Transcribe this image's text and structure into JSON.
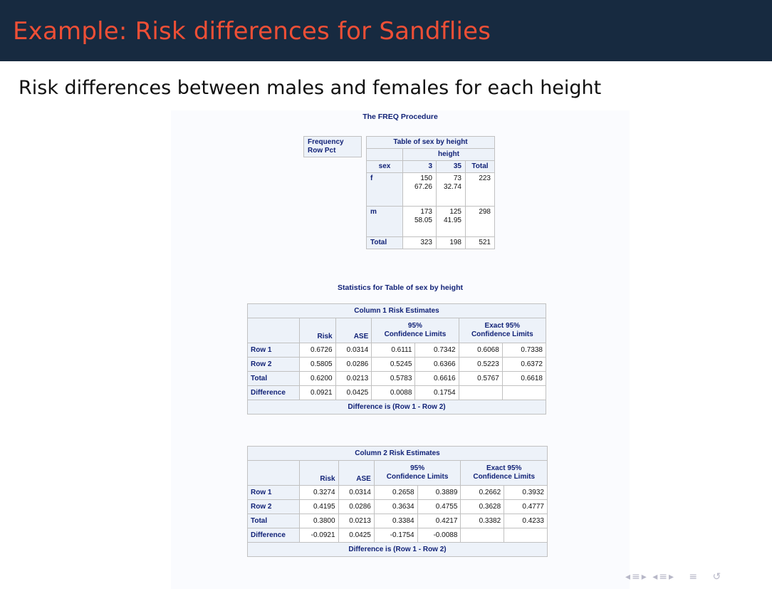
{
  "slide": {
    "title": "Example: Risk differences for Sandflies",
    "subtitle": "Risk differences between males and females for each height"
  },
  "freq": {
    "proc_title": "The FREQ Procedure",
    "legend": [
      "Frequency",
      "Row Pct"
    ],
    "table_title": "Table of sex by height",
    "col_var": "height",
    "row_var": "sex",
    "col_headers": [
      "3",
      "35",
      "Total"
    ],
    "rows": [
      {
        "label": "f",
        "cells": [
          [
            "150",
            "67.26"
          ],
          [
            "73",
            "32.74"
          ],
          [
            "223",
            ""
          ]
        ]
      },
      {
        "label": "m",
        "cells": [
          [
            "173",
            "58.05"
          ],
          [
            "125",
            "41.95"
          ],
          [
            "298",
            ""
          ]
        ]
      }
    ],
    "total_row": {
      "label": "Total",
      "cells": [
        "323",
        "198",
        "521"
      ]
    }
  },
  "stats": {
    "title": "Statistics for Table of sex by height",
    "tables": [
      {
        "title": "Column 1 Risk Estimates",
        "ci_header": [
          "95%",
          "Confidence Limits"
        ],
        "exact_header": [
          "Exact 95%",
          "Confidence Limits"
        ],
        "col_headers": [
          "Risk",
          "ASE"
        ],
        "rows": [
          {
            "label": "Row 1",
            "values": [
              "0.6726",
              "0.0314",
              "0.6111",
              "0.7342",
              "0.6068",
              "0.7338"
            ]
          },
          {
            "label": "Row 2",
            "values": [
              "0.5805",
              "0.0286",
              "0.5245",
              "0.6366",
              "0.5223",
              "0.6372"
            ]
          },
          {
            "label": "Total",
            "values": [
              "0.6200",
              "0.0213",
              "0.5783",
              "0.6616",
              "0.5767",
              "0.6618"
            ]
          },
          {
            "label": "Difference",
            "values": [
              "0.0921",
              "0.0425",
              "0.0088",
              "0.1754",
              "",
              ""
            ]
          }
        ],
        "footer": "Difference is (Row 1 - Row 2)"
      },
      {
        "title": "Column 2 Risk Estimates",
        "ci_header": [
          "95%",
          "Confidence Limits"
        ],
        "exact_header": [
          "Exact 95%",
          "Confidence Limits"
        ],
        "col_headers": [
          "Risk",
          "ASE"
        ],
        "rows": [
          {
            "label": "Row 1",
            "values": [
              "0.3274",
              "0.0314",
              "0.2658",
              "0.3889",
              "0.2662",
              "0.3932"
            ]
          },
          {
            "label": "Row 2",
            "values": [
              "0.4195",
              "0.0286",
              "0.3634",
              "0.4755",
              "0.3628",
              "0.4777"
            ]
          },
          {
            "label": "Total",
            "values": [
              "0.3800",
              "0.0213",
              "0.3384",
              "0.4217",
              "0.3382",
              "0.4233"
            ]
          },
          {
            "label": "Difference",
            "values": [
              "-0.0921",
              "0.0425",
              "-0.1754",
              "-0.0088",
              "",
              ""
            ]
          }
        ],
        "footer": "Difference is (Row 1 - Row 2)"
      }
    ]
  },
  "navigation": {
    "icons": [
      "section-prev-icon",
      "section-next-icon",
      "subsection-prev-icon",
      "subsection-next-icon",
      "align-icon",
      "undo-icon"
    ]
  }
}
